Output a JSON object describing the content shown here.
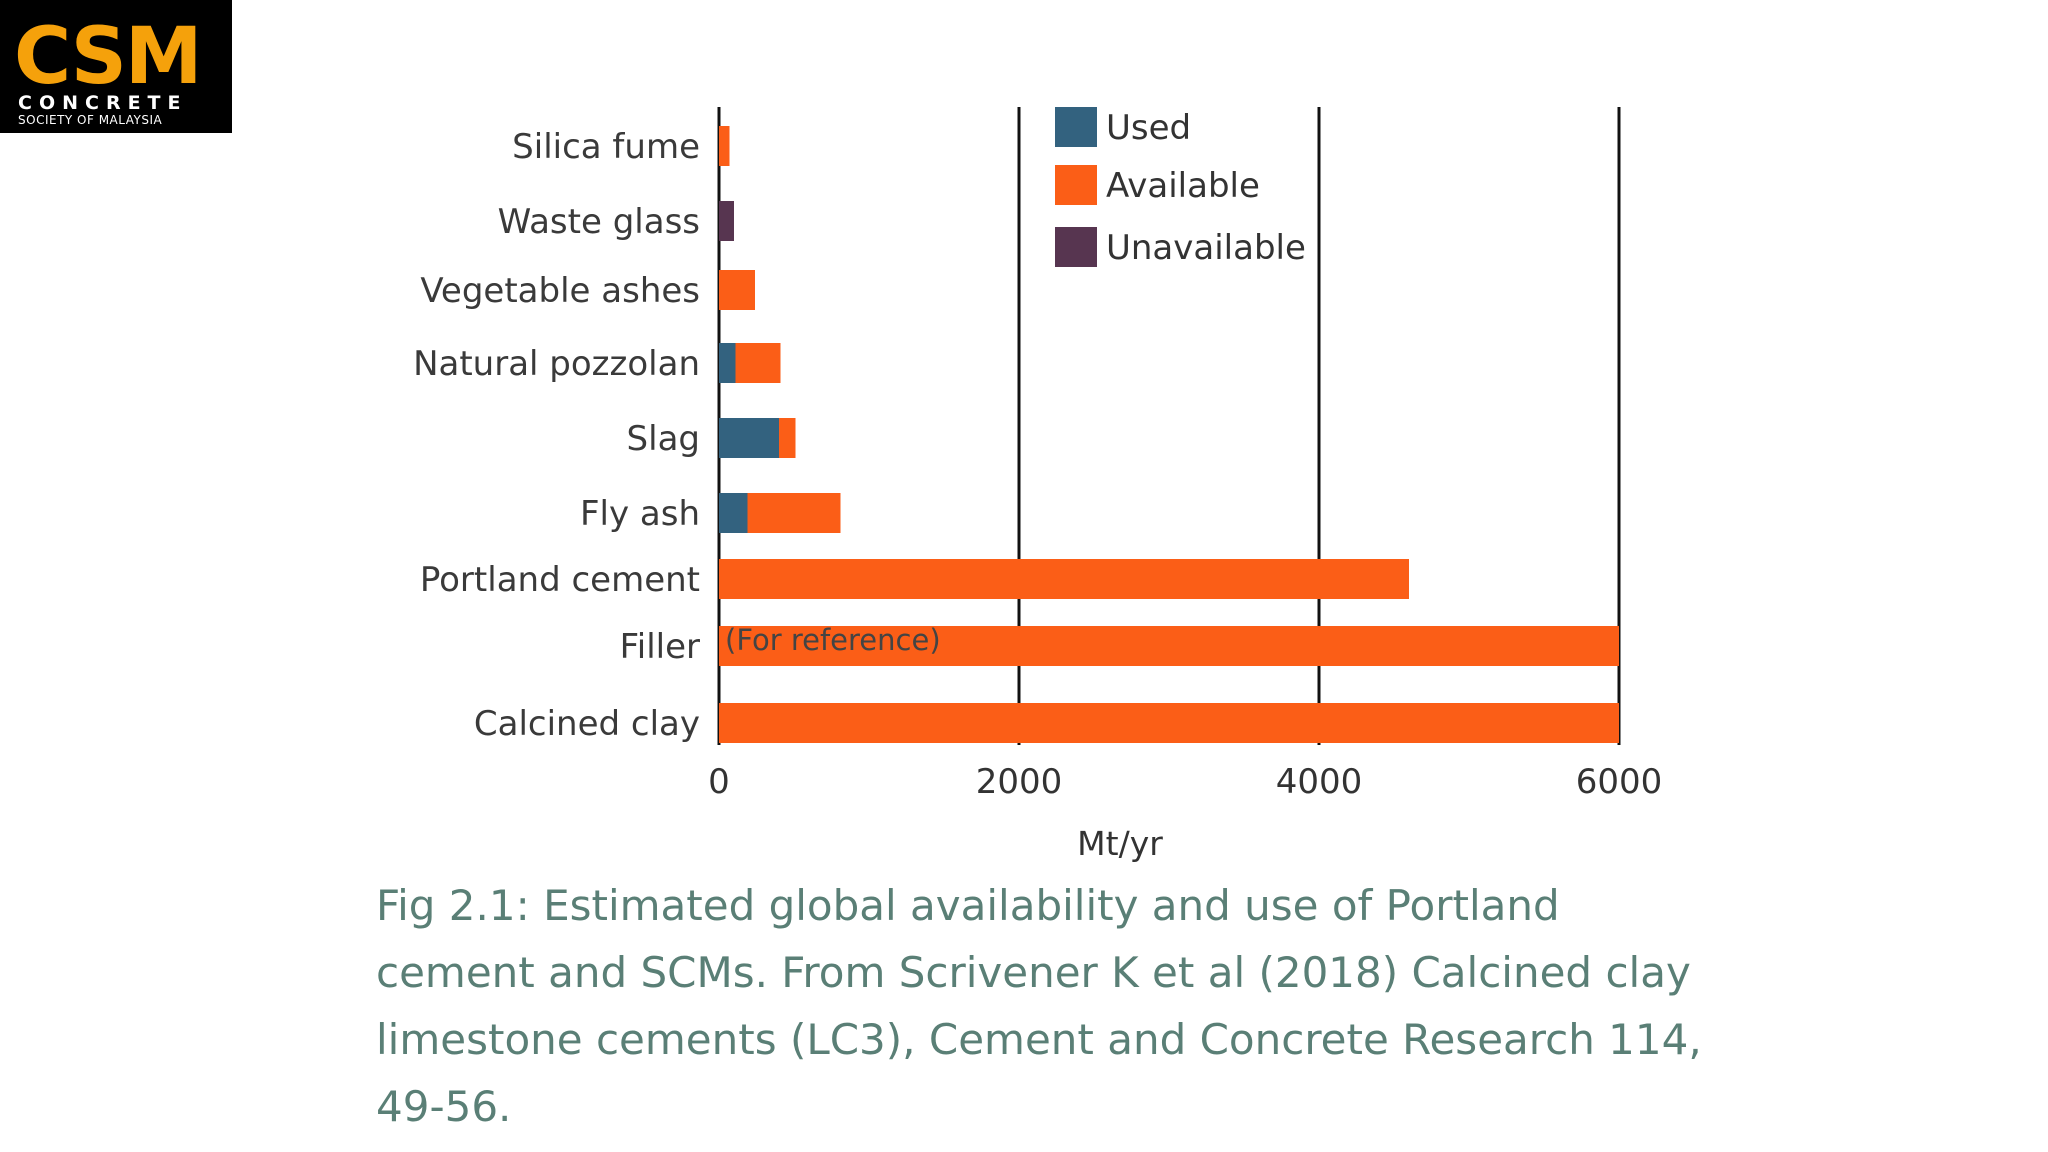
{
  "logo": {
    "brand": "CSM",
    "line1": "CONCRETE",
    "line2": "SOCIETY OF MALAYSIA"
  },
  "colors": {
    "used": "#33627f",
    "available": "#fb5e17",
    "unavailable": "#573550",
    "caption": "#5a7f76"
  },
  "chart_data": {
    "type": "bar",
    "orientation": "horizontal",
    "stacked": true,
    "categories": [
      "Silica fume",
      "Waste glass",
      "Vegetable ashes",
      "Natural pozzolan",
      "Slag",
      "Fly ash",
      "Portland cement",
      "Filler",
      "Calcined clay"
    ],
    "series": [
      {
        "name": "Used",
        "values": [
          0,
          0,
          0,
          110,
          400,
          190,
          0,
          0,
          0
        ]
      },
      {
        "name": "Available",
        "values": [
          70,
          0,
          240,
          300,
          110,
          620,
          4600,
          6000,
          6000
        ]
      },
      {
        "name": "Unavailable",
        "values": [
          0,
          100,
          0,
          0,
          0,
          0,
          0,
          0,
          0
        ]
      }
    ],
    "xlabel": "Mt/yr",
    "xlim": [
      0,
      6000
    ],
    "xticks": [
      0,
      2000,
      4000,
      6000
    ],
    "xtick_labels": [
      "0",
      "2000",
      "4000",
      "6000"
    ],
    "grid": "vertical",
    "legend": "top-center",
    "annotations": [
      {
        "category": "Filler",
        "text": "(For reference)"
      }
    ]
  },
  "caption": "Fig 2.1: Estimated global availability and use of Portland cement and SCMs. From Scrivener K et al (2018) Calcined clay limestone cements (LC3), Cement and Concrete Research 114, 49-56."
}
